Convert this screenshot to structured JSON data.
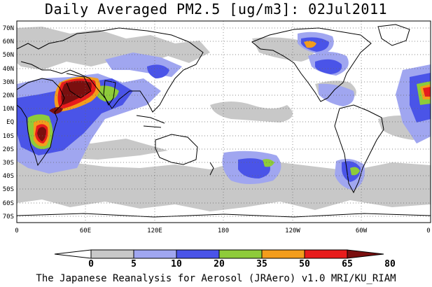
{
  "title": "Daily Averaged PM2.5 [ug/m3]: 02Jul2011",
  "footer": "The Japanese Reanalysis for Aerosol (JRAero) v1.0 MRI/KU_RIAM",
  "map": {
    "lon_range": [
      0,
      360
    ],
    "lat_range": [
      -75,
      75
    ],
    "grid": true,
    "lat_labels": [
      "70N",
      "60N",
      "50N",
      "40N",
      "30N",
      "20N",
      "10N",
      "EQ",
      "10S",
      "20S",
      "30S",
      "40S",
      "50S",
      "60S",
      "70S"
    ],
    "lon_labels": [
      "0",
      "60E",
      "120E",
      "180",
      "120W",
      "60W",
      "0"
    ]
  },
  "colorbar": {
    "labels": [
      "0",
      "5",
      "10",
      "20",
      "35",
      "50",
      "65",
      "80"
    ],
    "colors": [
      "#ffffff",
      "#c8c8c8",
      "#a0a6f0",
      "#4a54e8",
      "#8ecb3a",
      "#f39d1c",
      "#e81c1c",
      "#7a0f0f"
    ]
  }
}
